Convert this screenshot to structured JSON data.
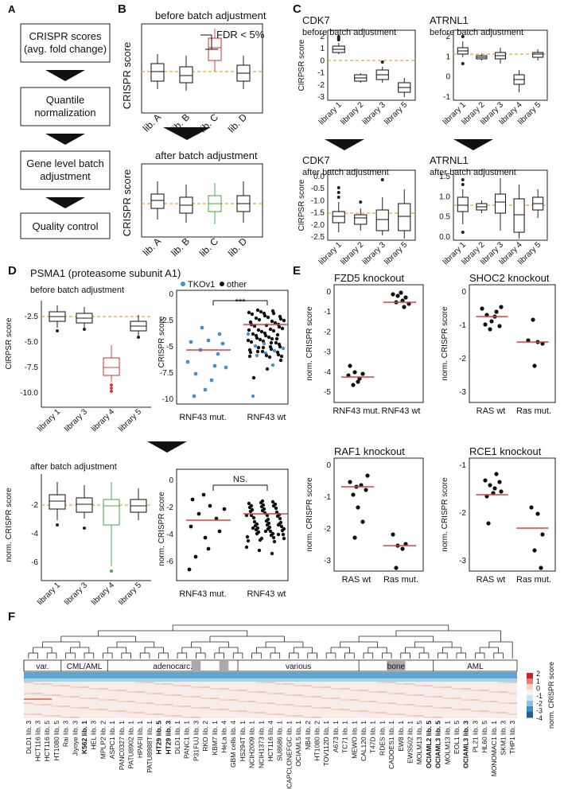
{
  "panels": {
    "A": {
      "letter": "A",
      "steps": [
        "CRISPR scores",
        "(avg. fold change)",
        "Quantile",
        "normalization",
        "Gene level batch",
        "adjustment",
        "Quality control"
      ]
    },
    "B": {
      "letter": "B",
      "top_title": "before batch adjustment",
      "bottom_title": "after batch adjustment",
      "ylabel": "CRISPR score",
      "fdr": "FDR < 5%",
      "libs": [
        "lib. A",
        "lib. B",
        "lib. C",
        "lib. D"
      ]
    },
    "C": {
      "letter": "C",
      "plots": [
        {
          "title": "CDK7",
          "sub": "before batch adjustment",
          "ylabel": "CIRPSR score",
          "libs": [
            "library 1",
            "library 2",
            "library 3",
            "library 5"
          ],
          "ticks": [
            "2",
            "1",
            "0",
            "-1",
            "-2",
            "-3"
          ]
        },
        {
          "title": "ATRNL1",
          "sub": "before batch adjustment",
          "ylabel": "",
          "libs": [
            "library 1",
            "library 2",
            "library 3",
            "library 4",
            "library 5"
          ],
          "ticks": [
            "2",
            "1",
            "0",
            "-1"
          ]
        },
        {
          "title": "CDK7",
          "sub": "after batch adjustment",
          "ylabel": "CIRPSR score",
          "libs": [
            "library 1",
            "library 2",
            "library 3",
            "library 5"
          ],
          "ticks": [
            "0.0",
            "-0.5",
            "-1.0",
            "-1.5",
            "-2.0",
            "-2.5"
          ]
        },
        {
          "title": "ATRNL1",
          "sub": "after batch adjustment",
          "ylabel": "",
          "libs": [
            "library 1",
            "library 2",
            "library 3",
            "library 4",
            "library 5"
          ],
          "ticks": [
            "1.5",
            "1.0",
            "0.5",
            "0.0"
          ]
        }
      ]
    },
    "D": {
      "letter": "D",
      "title": "PSMA1 (proteasome subunit A1)",
      "sub_before": "before batch adjustment",
      "sub_after": "after batch adjustment",
      "ylabel_before": "CIRPSR score",
      "ylabel_after": "norm. CRISPR score",
      "ylabel_scatter": "CRISPR score",
      "ylabel_scatter2": "norm. CRISPR score",
      "libs": [
        "library 1",
        "library 3",
        "library 4",
        "library 5"
      ],
      "ticks_before": [
        "-2.5",
        "-5.0",
        "-7.5",
        "-10.0"
      ],
      "ticks_after": [
        "-2",
        "-4",
        "-6"
      ],
      "ticks_sc1": [
        "0",
        "-2.5",
        "-5",
        "-7.5",
        "-10"
      ],
      "ticks_sc2": [
        "0",
        "-2",
        "-4",
        "-6"
      ],
      "legend": [
        "TKOv1",
        "other"
      ],
      "groups": [
        "RNF43 mut.",
        "RNF43 wt"
      ],
      "sig1": "***",
      "sig2": "NS."
    },
    "E": {
      "letter": "E",
      "ylabel": "norm. CRISPR score",
      "plots": [
        {
          "title": "FZD5 knockout",
          "groups": [
            "RNF43 mut.",
            "RNF43 wt"
          ],
          "ticks": [
            "0",
            "-1",
            "-2",
            "-3",
            "-4",
            "-5"
          ]
        },
        {
          "title": "SHOC2 knockout",
          "groups": [
            "RAS wt",
            "Ras mut."
          ],
          "ticks": [
            "0",
            "-1",
            "-2",
            "-3"
          ]
        },
        {
          "title": "RAF1 knockout",
          "groups": [
            "RAS wt",
            "Ras mut."
          ],
          "ticks": [
            "0",
            "-1",
            "-2",
            "-3"
          ]
        },
        {
          "title": "RCE1 knockout",
          "groups": [
            "RAS wt",
            "Ras mut."
          ],
          "ticks": [
            "-1",
            "-2",
            "-3"
          ]
        }
      ]
    },
    "F": {
      "letter": "F",
      "categories": [
        "var.",
        "CML/AML",
        "adenocarc.",
        "various",
        "bone",
        "AML"
      ],
      "legend_title": "norm. CRISPR score",
      "legend_ticks": [
        "2",
        "1",
        "0",
        "-1",
        "-2",
        "-3",
        "-4"
      ],
      "cell_lines": [
        "DLD1 lib. 3",
        "HCT116 lib. 3",
        "HCT116 lib. 5",
        "HT1080 lib. 5",
        "Rai lib. 3",
        "Jiyoye lib. 3",
        "K562 lib. 1",
        "HEL lib. 3",
        "MPLP2 lib. 2",
        "ASPC1 lib. 1",
        "PANC0327 lib. 1",
        "PATU8902 lib. 1",
        "HPAFII lib. 1",
        "PATU8988T lib. 1",
        "HT29 lib. 5",
        "HT29 lib. 3",
        "DLD1 lib. 1",
        "PANC1 lib. 1",
        "P31FUJ lib. 3",
        "RKO lib. 2",
        "KBM7 lib. 1",
        "HeLa lib. 4",
        "GBM cells lib. 4",
        "HS294T lib. 1",
        "NCIH2009 lib. 1",
        "NCIH1373 lib. 1",
        "HCT116 lib. 4",
        "SU8686 lib. 1",
        "LNCAPCLONEFGC lib. 1",
        "OCIAML5 lib. 1",
        "NB4 lib. 2",
        "HT1080 lib. 2",
        "TOV112D lib. 1",
        "A673 lib. 1",
        "TC71 lib. 1",
        "MEWO lib. 1",
        "CAL120 lib. 1",
        "T47D lib. 1",
        "RDES lib. 1",
        "CADOES1 lib. 1",
        "EW8 lib. 1",
        "EWS502 lib. 1",
        "MOLM13 lib. 5",
        "OCIAML2 lib. 5",
        "OCIAML3 lib. 5",
        "MOLM13 lib. 1",
        "EOL1 lib. 5",
        "OCIAML3 lib. 3",
        "PL21 lib. 3",
        "HL60 lib. 5",
        "MONOMAC1 lib. 1",
        "SKM1 lib. 3",
        "THP1 lib. 3"
      ]
    }
  }
}
